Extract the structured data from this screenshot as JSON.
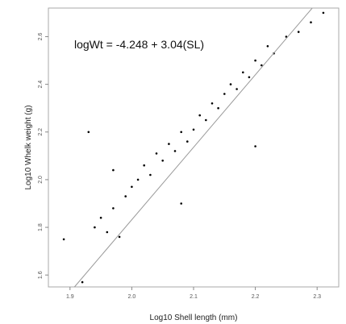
{
  "chart_data": {
    "type": "scatter",
    "title": "",
    "xlabel": "Log10 Shell length (mm)",
    "ylabel": "Log10 Whelk weight (g)",
    "xlim": [
      1.865,
      2.335
    ],
    "ylim": [
      1.55,
      2.72
    ],
    "x_ticks": [
      1.9,
      2.0,
      2.1,
      2.2,
      2.3
    ],
    "x_tick_labels": [
      "1.9",
      "2.0",
      "2.1",
      "2.2",
      "2.3"
    ],
    "y_ticks": [
      1.6,
      1.8,
      2.0,
      2.2,
      2.4,
      2.6
    ],
    "y_tick_labels": [
      "1.6",
      "1.8",
      "2.0",
      "2.2",
      "2.4",
      "2.6"
    ],
    "grid": false,
    "legend": "none",
    "point_color": "#000000",
    "fit_line_color": "#999999",
    "annotation": "logWt = -4.248 + 3.04(SL)",
    "regression": {
      "intercept": -4.248,
      "slope": 3.04
    },
    "series": [
      {
        "points": [
          [
            1.89,
            1.75
          ],
          [
            1.92,
            1.57
          ],
          [
            1.94,
            1.8
          ],
          [
            1.95,
            1.84
          ],
          [
            1.96,
            1.78
          ],
          [
            1.97,
            1.88
          ],
          [
            1.98,
            1.76
          ],
          [
            1.99,
            1.93
          ],
          [
            2.0,
            1.97
          ],
          [
            2.01,
            2.0
          ],
          [
            2.02,
            2.06
          ],
          [
            2.03,
            2.02
          ],
          [
            2.04,
            2.11
          ],
          [
            2.05,
            2.08
          ],
          [
            2.06,
            2.15
          ],
          [
            2.07,
            2.12
          ],
          [
            2.08,
            2.2
          ],
          [
            2.09,
            2.16
          ],
          [
            2.1,
            2.21
          ],
          [
            2.11,
            2.27
          ],
          [
            2.12,
            2.25
          ],
          [
            2.13,
            2.32
          ],
          [
            2.14,
            2.3
          ],
          [
            2.15,
            2.36
          ],
          [
            2.16,
            2.4
          ],
          [
            2.17,
            2.38
          ],
          [
            2.18,
            2.45
          ],
          [
            2.19,
            2.43
          ],
          [
            2.2,
            2.5
          ],
          [
            2.21,
            2.48
          ],
          [
            2.22,
            2.56
          ],
          [
            2.23,
            2.53
          ],
          [
            2.25,
            2.6
          ],
          [
            2.27,
            2.62
          ],
          [
            2.29,
            2.66
          ],
          [
            2.31,
            2.7
          ],
          [
            1.93,
            2.2
          ],
          [
            1.97,
            2.04
          ],
          [
            2.08,
            1.9
          ],
          [
            2.2,
            2.14
          ]
        ]
      }
    ]
  }
}
